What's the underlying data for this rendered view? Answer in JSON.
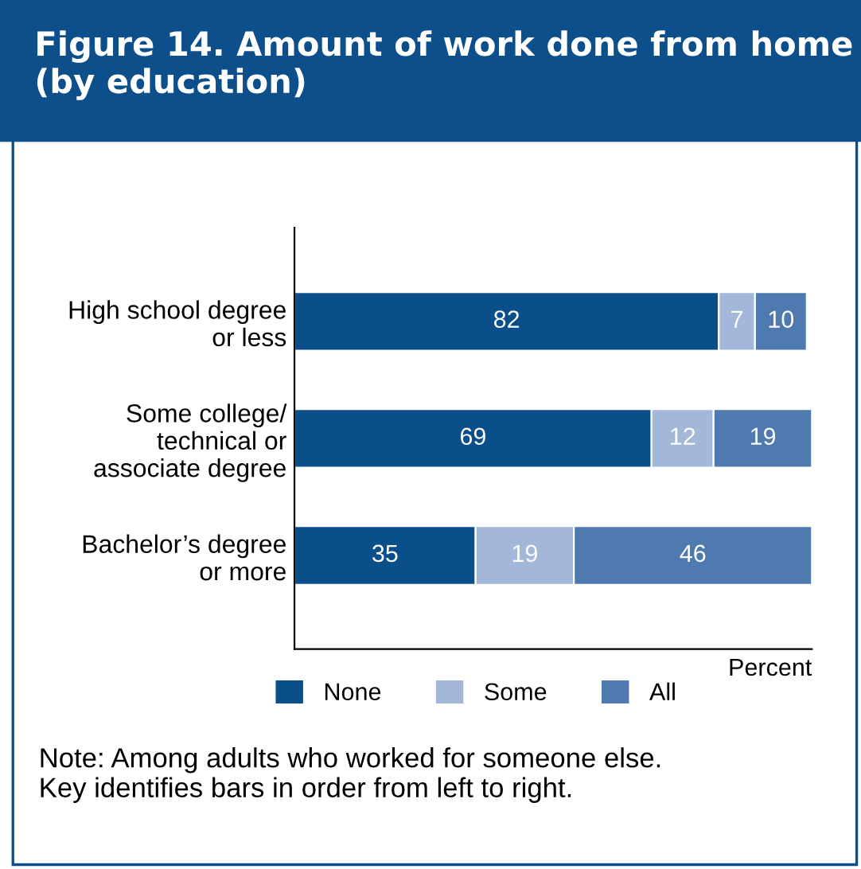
{
  "chart_data": {
    "type": "bar",
    "orientation": "horizontal",
    "stacked": true,
    "title": "Figure 14. Amount of work done from home (by education)",
    "categories": [
      "High school degree\nor less",
      "Some college/\ntechnical or\nassociate degree",
      "Bachelor’s degree\nor more"
    ],
    "series": [
      {
        "name": "None",
        "color": "#0b4f8a",
        "values": [
          82,
          69,
          35
        ]
      },
      {
        "name": "Some",
        "color": "#a3b8d8",
        "values": [
          7,
          12,
          19
        ]
      },
      {
        "name": "All",
        "color": "#4f7ab0",
        "values": [
          10,
          19,
          46
        ]
      }
    ],
    "data_labels": true,
    "xlabel": "Percent",
    "legend": "bottom",
    "tick_labels": "y",
    "grid": false,
    "annotations": [
      "Note: Among adults who worked for someone else.\nKey identifies bars in order from left to right."
    ]
  }
}
